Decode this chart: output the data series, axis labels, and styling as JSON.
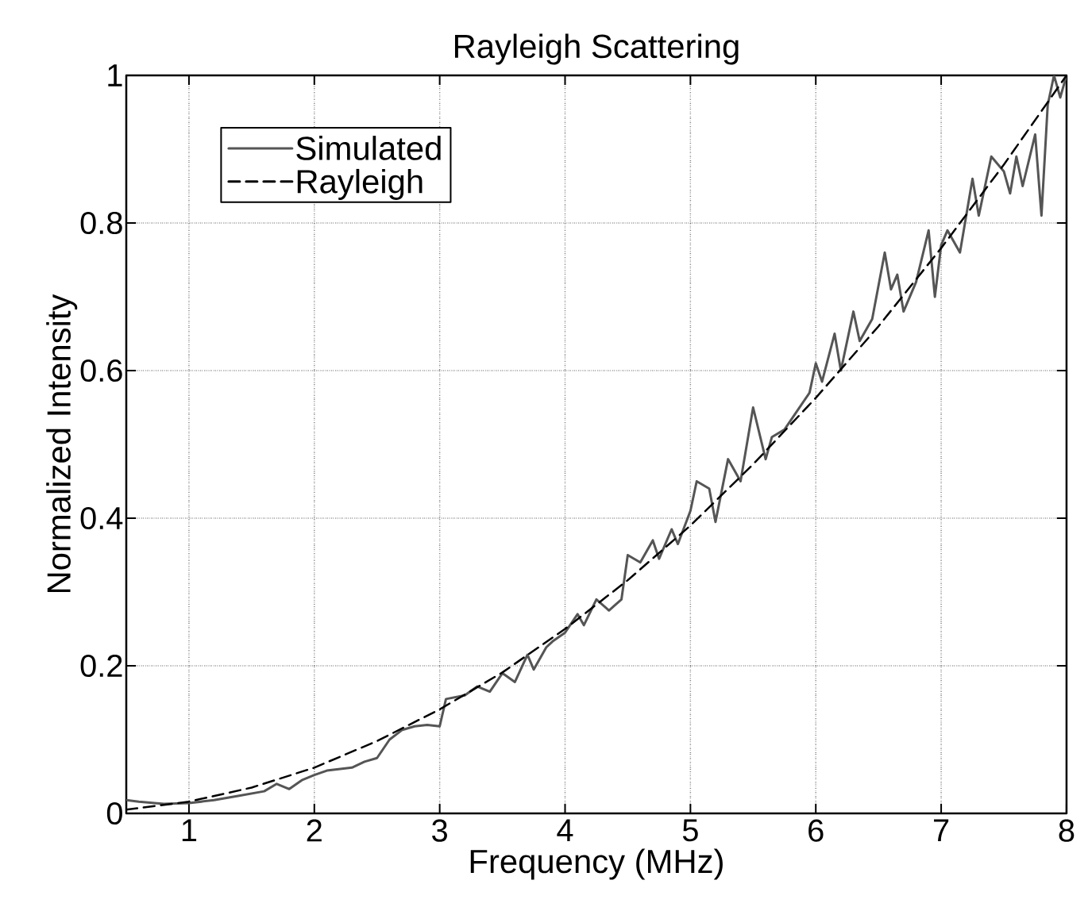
{
  "chart_data": {
    "type": "line",
    "title": "Rayleigh Scattering",
    "xlabel": "Frequency (MHz)",
    "ylabel": "Normalized Intensity",
    "xlim": [
      0.5,
      8
    ],
    "ylim": [
      0,
      1
    ],
    "xticks": [
      1,
      2,
      3,
      4,
      5,
      6,
      7,
      8
    ],
    "yticks": [
      0,
      0.2,
      0.4,
      0.6,
      0.8,
      1
    ],
    "grid": true,
    "legend": "top left",
    "series": [
      {
        "name": "Simulated",
        "color": "#555555",
        "line_style": "solid",
        "x": [
          0.5,
          0.6,
          0.8,
          1.0,
          1.2,
          1.4,
          1.6,
          1.7,
          1.8,
          1.9,
          2.0,
          2.1,
          2.3,
          2.4,
          2.5,
          2.6,
          2.7,
          2.8,
          2.9,
          3.0,
          3.05,
          3.2,
          3.3,
          3.4,
          3.5,
          3.6,
          3.7,
          3.75,
          3.85,
          3.9,
          4.0,
          4.1,
          4.15,
          4.25,
          4.35,
          4.45,
          4.5,
          4.6,
          4.7,
          4.75,
          4.85,
          4.9,
          5.0,
          5.05,
          5.15,
          5.2,
          5.3,
          5.4,
          5.5,
          5.6,
          5.65,
          5.75,
          5.85,
          5.95,
          6.0,
          6.05,
          6.15,
          6.2,
          6.3,
          6.35,
          6.45,
          6.55,
          6.6,
          6.65,
          6.7,
          6.8,
          6.9,
          6.95,
          7.0,
          7.05,
          7.15,
          7.25,
          7.3,
          7.4,
          7.5,
          7.55,
          7.6,
          7.65,
          7.75,
          7.8,
          7.85,
          7.9,
          7.95,
          8.0
        ],
        "values": [
          0.018,
          0.016,
          0.013,
          0.014,
          0.018,
          0.024,
          0.03,
          0.04,
          0.033,
          0.045,
          0.052,
          0.058,
          0.062,
          0.07,
          0.075,
          0.1,
          0.113,
          0.118,
          0.12,
          0.118,
          0.155,
          0.16,
          0.172,
          0.165,
          0.19,
          0.178,
          0.215,
          0.195,
          0.225,
          0.233,
          0.245,
          0.27,
          0.255,
          0.29,
          0.275,
          0.29,
          0.35,
          0.34,
          0.37,
          0.345,
          0.385,
          0.365,
          0.41,
          0.45,
          0.44,
          0.395,
          0.48,
          0.45,
          0.55,
          0.48,
          0.51,
          0.52,
          0.545,
          0.57,
          0.61,
          0.585,
          0.65,
          0.6,
          0.68,
          0.64,
          0.67,
          0.76,
          0.71,
          0.73,
          0.68,
          0.72,
          0.79,
          0.7,
          0.77,
          0.79,
          0.76,
          0.86,
          0.81,
          0.89,
          0.87,
          0.84,
          0.89,
          0.85,
          0.92,
          0.81,
          0.96,
          1.0,
          0.97,
          1.0
        ]
      },
      {
        "name": "Rayleigh",
        "color": "#000000",
        "line_style": "dashed",
        "x": [
          0.5,
          1,
          1.5,
          2,
          2.5,
          3,
          3.5,
          4,
          4.5,
          5,
          5.5,
          6,
          6.5,
          7,
          7.5,
          8
        ],
        "values": [
          0.005,
          0.016,
          0.035,
          0.062,
          0.098,
          0.141,
          0.191,
          0.25,
          0.316,
          0.39,
          0.473,
          0.563,
          0.66,
          0.766,
          0.879,
          1.0
        ]
      }
    ]
  }
}
